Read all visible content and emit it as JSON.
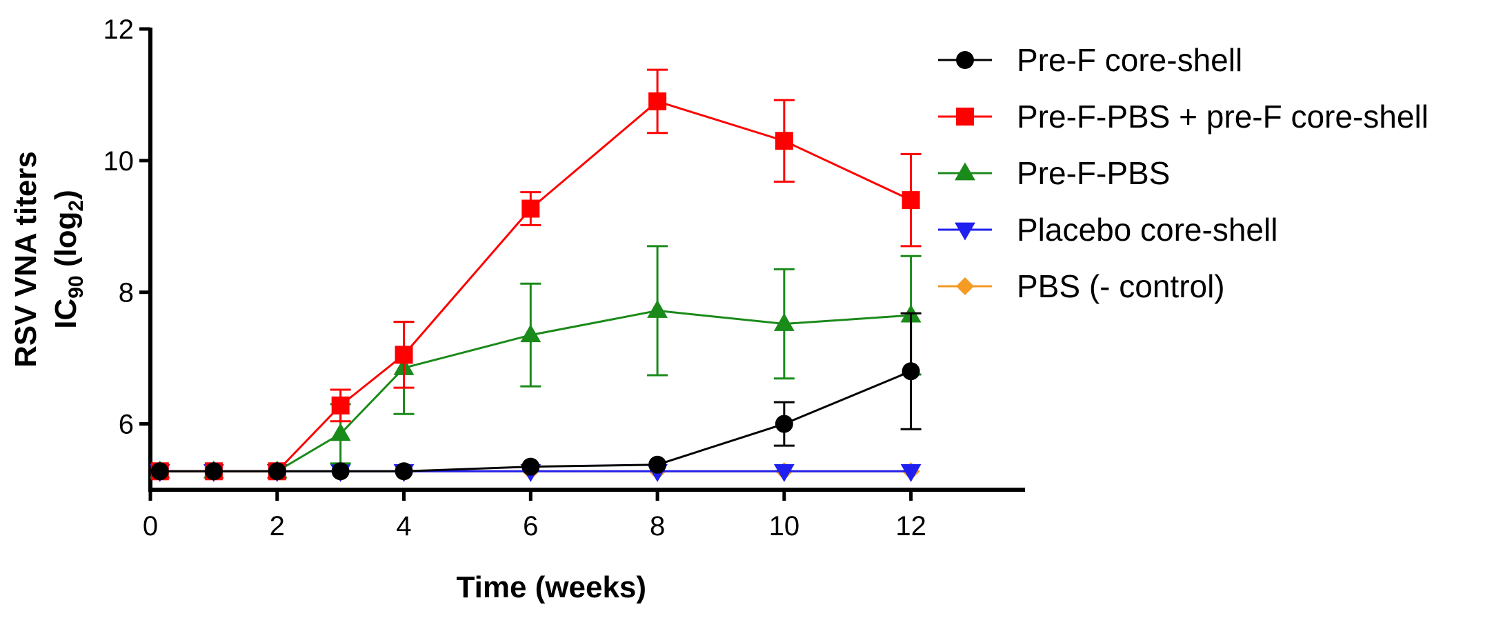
{
  "chart_data": {
    "type": "line",
    "title": "",
    "xlabel": "Time (weeks)",
    "ylabel": {
      "line1": "RSV VNA titers",
      "prefix": "IC",
      "sub1": "90",
      "mid": " (log",
      "sub2": "2",
      "suffix": ")"
    },
    "xlim": [
      0,
      13.8
    ],
    "ylim": [
      5,
      12
    ],
    "xticks": [
      0,
      2,
      4,
      6,
      8,
      10,
      12
    ],
    "yticks": [
      6,
      8,
      10,
      12
    ],
    "grid": false,
    "legend_position": "right",
    "series": [
      {
        "name": "Pre-F core-shell",
        "color": "#000000",
        "marker": "circle",
        "points": [
          {
            "x": 0.15,
            "y": 5.28
          },
          {
            "x": 1,
            "y": 5.28
          },
          {
            "x": 2,
            "y": 5.28
          },
          {
            "x": 3,
            "y": 5.28
          },
          {
            "x": 4,
            "y": 5.28
          },
          {
            "x": 6,
            "y": 5.35
          },
          {
            "x": 8,
            "y": 5.38
          },
          {
            "x": 10,
            "y": 6.0
          },
          {
            "x": 12,
            "y": 6.8
          }
        ],
        "errors": [
          0,
          0,
          0,
          0,
          0,
          0,
          0,
          0.33,
          0.88
        ]
      },
      {
        "name": "Pre-F-PBS + pre-F core-shell",
        "color": "#ff0000",
        "marker": "square",
        "points": [
          {
            "x": 0.15,
            "y": 5.28
          },
          {
            "x": 1,
            "y": 5.28
          },
          {
            "x": 2,
            "y": 5.28
          },
          {
            "x": 3,
            "y": 6.28
          },
          {
            "x": 4,
            "y": 7.05
          },
          {
            "x": 6,
            "y": 9.27
          },
          {
            "x": 8,
            "y": 10.9
          },
          {
            "x": 10,
            "y": 10.3
          },
          {
            "x": 12,
            "y": 9.4
          }
        ],
        "errors": [
          0,
          0,
          0,
          0.24,
          0.5,
          0.25,
          0.48,
          0.62,
          0.7
        ]
      },
      {
        "name": "Pre-F-PBS",
        "color": "#1a8a1a",
        "marker": "triangle-up",
        "points": [
          {
            "x": 0.15,
            "y": 5.28
          },
          {
            "x": 1,
            "y": 5.28
          },
          {
            "x": 2,
            "y": 5.28
          },
          {
            "x": 3,
            "y": 5.85
          },
          {
            "x": 4,
            "y": 6.85
          },
          {
            "x": 6,
            "y": 7.35
          },
          {
            "x": 8,
            "y": 7.72
          },
          {
            "x": 10,
            "y": 7.52
          },
          {
            "x": 12,
            "y": 7.65
          }
        ],
        "errors": [
          0,
          0,
          0,
          0.45,
          0.7,
          0.78,
          0.98,
          0.83,
          0.9
        ]
      },
      {
        "name": "Placebo core-shell",
        "color": "#1f1ff0",
        "marker": "triangle-down",
        "points": [
          {
            "x": 0.15,
            "y": 5.28
          },
          {
            "x": 1,
            "y": 5.28
          },
          {
            "x": 2,
            "y": 5.28
          },
          {
            "x": 3,
            "y": 5.28
          },
          {
            "x": 4,
            "y": 5.28
          },
          {
            "x": 6,
            "y": 5.28
          },
          {
            "x": 8,
            "y": 5.28
          },
          {
            "x": 10,
            "y": 5.28
          },
          {
            "x": 12,
            "y": 5.28
          }
        ],
        "errors": [
          0,
          0,
          0,
          0,
          0,
          0,
          0,
          0,
          0
        ]
      },
      {
        "name": "PBS (- control)",
        "color": "#f59a23",
        "marker": "diamond",
        "points": [
          {
            "x": 0.15,
            "y": 5.28
          },
          {
            "x": 1,
            "y": 5.28
          },
          {
            "x": 2,
            "y": 5.28
          },
          {
            "x": 3,
            "y": 5.28
          },
          {
            "x": 4,
            "y": 5.28
          },
          {
            "x": 6,
            "y": 5.28
          },
          {
            "x": 8,
            "y": 5.28
          },
          {
            "x": 10,
            "y": 5.28
          },
          {
            "x": 12,
            "y": 5.28
          }
        ],
        "errors": [
          0,
          0,
          0,
          0,
          0,
          0,
          0,
          0,
          0
        ]
      }
    ]
  }
}
